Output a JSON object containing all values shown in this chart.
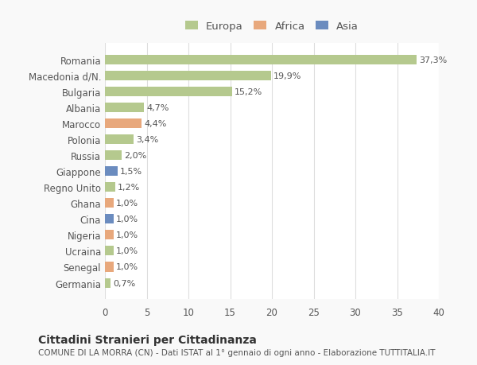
{
  "countries": [
    "Romania",
    "Macedonia d/N.",
    "Bulgaria",
    "Albania",
    "Marocco",
    "Polonia",
    "Russia",
    "Giappone",
    "Regno Unito",
    "Ghana",
    "Cina",
    "Nigeria",
    "Ucraina",
    "Senegal",
    "Germania"
  ],
  "values": [
    37.3,
    19.9,
    15.2,
    4.7,
    4.4,
    3.4,
    2.0,
    1.5,
    1.2,
    1.0,
    1.0,
    1.0,
    1.0,
    1.0,
    0.7
  ],
  "labels": [
    "37,3%",
    "19,9%",
    "15,2%",
    "4,7%",
    "4,4%",
    "3,4%",
    "2,0%",
    "1,5%",
    "1,2%",
    "1,0%",
    "1,0%",
    "1,0%",
    "1,0%",
    "1,0%",
    "0,7%"
  ],
  "continents": [
    "Europa",
    "Europa",
    "Europa",
    "Europa",
    "Africa",
    "Europa",
    "Europa",
    "Asia",
    "Europa",
    "Africa",
    "Asia",
    "Africa",
    "Europa",
    "Africa",
    "Europa"
  ],
  "colors": {
    "Europa": "#b5c98e",
    "Africa": "#e8a87c",
    "Asia": "#6b8cbf"
  },
  "legend": {
    "Europa": "#b5c98e",
    "Africa": "#e8a87c",
    "Asia": "#6b8cbf"
  },
  "title": "Cittadini Stranieri per Cittadinanza",
  "subtitle": "COMUNE DI LA MORRA (CN) - Dati ISTAT al 1° gennaio di ogni anno - Elaborazione TUTTITALIA.IT",
  "xlim": [
    0,
    40
  ],
  "xticks": [
    0,
    5,
    10,
    15,
    20,
    25,
    30,
    35,
    40
  ],
  "background_color": "#f9f9f9",
  "plot_background": "#ffffff",
  "grid_color": "#dddddd",
  "text_color": "#555555",
  "bar_height": 0.6
}
